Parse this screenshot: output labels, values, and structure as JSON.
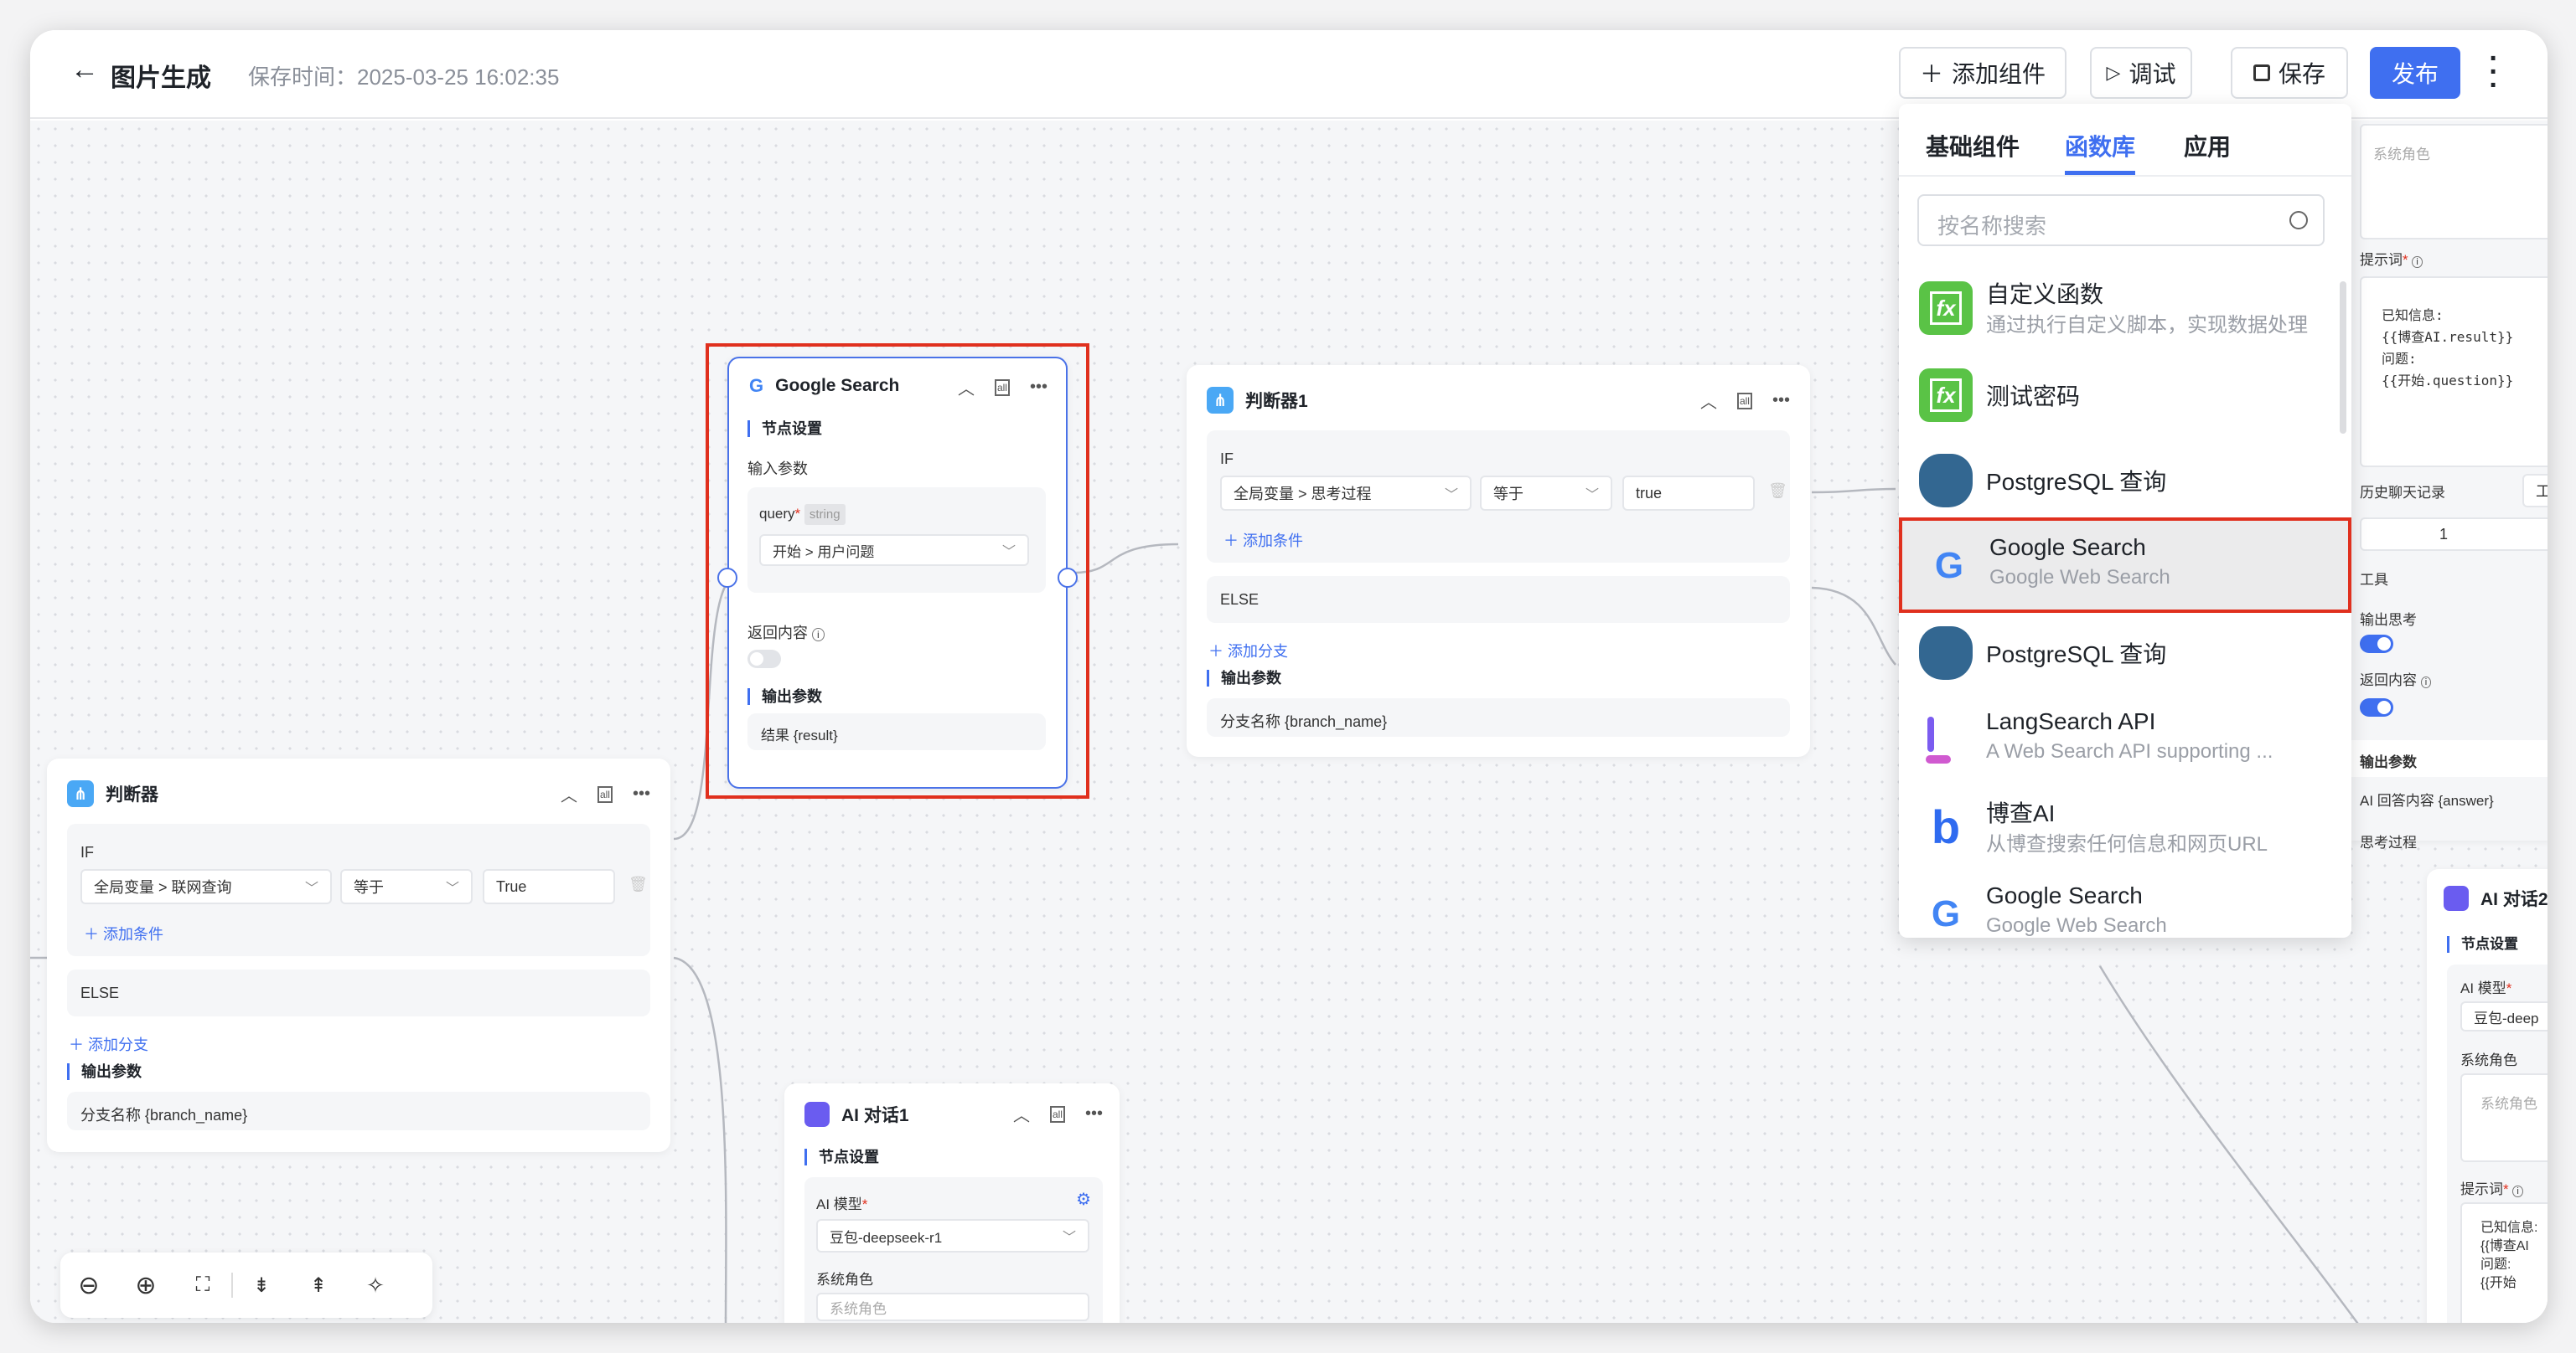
{
  "header": {
    "title": "图片生成",
    "save_time": "保存时间：2025-03-25 16:02:35",
    "buttons": {
      "add_component": "添加组件",
      "debug": "调试",
      "save": "保存",
      "publish": "发布"
    },
    "accent_color": "#3f6ff0"
  },
  "panel": {
    "tabs": [
      {
        "label": "基础组件"
      },
      {
        "label": "函数库",
        "active": true
      },
      {
        "label": "应用"
      }
    ],
    "search_placeholder": "按名称搜索",
    "items": [
      {
        "title": "自定义函数",
        "subtitle": "通过执行自定义脚本，实现数据处理",
        "icon": "fx-icon"
      },
      {
        "title": "测试密码",
        "icon": "fx-icon"
      },
      {
        "title": "PostgreSQL 查询",
        "icon": "postgresql-icon"
      },
      {
        "title": "Google Search",
        "subtitle": "Google Web Search",
        "icon": "google-icon",
        "highlighted": true
      },
      {
        "title": "PostgreSQL 查询",
        "icon": "postgresql-icon"
      },
      {
        "title": "LangSearch API",
        "subtitle": "A Web Search API supporting ...",
        "icon": "langsearch-icon"
      },
      {
        "title": "博查AI",
        "subtitle": "从博查搜索任何信息和网页URL",
        "icon": "bocha-icon"
      },
      {
        "title": "Google Search",
        "subtitle": "Google Web Search",
        "icon": "google-icon"
      }
    ]
  },
  "google_node": {
    "title": "Google Search",
    "section": "节点设置",
    "input_label": "输入参数",
    "param_name": "query",
    "param_type": "string",
    "param_value": "开始 > 用户问题",
    "return_label": "返回内容",
    "return_enabled": false,
    "output_label": "输出参数",
    "output_value": "结果 {result}"
  },
  "judge1": {
    "title": "判断器1",
    "if_label": "IF",
    "variable": "全局变量 > 思考过程",
    "operator": "等于",
    "value": "true",
    "add_condition": "添加条件",
    "else_label": "ELSE",
    "add_branch": "添加分支",
    "output_label": "输出参数",
    "output_value": "分支名称 {branch_name}"
  },
  "judge": {
    "title": "判断器",
    "if_label": "IF",
    "variable": "全局变量 > 联网查询",
    "operator": "等于",
    "value": "True",
    "add_condition": "添加条件",
    "else_label": "ELSE",
    "add_branch": "添加分支",
    "output_label": "输出参数",
    "output_value": "分支名称 {branch_name}"
  },
  "ai1": {
    "title": "AI 对话1",
    "section": "节点设置",
    "model_label": "AI 模型",
    "model_value": "豆包-deepseek-r1",
    "system_label": "系统角色",
    "system_placeholder": "系统角色"
  },
  "right_card": {
    "system_placeholder": "系统角色",
    "prompt_label": "提示词",
    "prompt_lines": [
      "已知信息:",
      "{{博查AI.result}}",
      "问题:",
      "{{开始.question}}"
    ],
    "history_label": "历史聊天记录",
    "history_select": "工",
    "history_value": "1",
    "tools_label": "工具",
    "output_thinking_label": "输出思考",
    "output_thinking_enabled": true,
    "return_label": "返回内容",
    "return_enabled": true,
    "output_label": "输出参数",
    "answer": "AI 回答内容 {answer}",
    "thinking": "思考过程"
  },
  "ai2": {
    "title": "AI 对话2",
    "section": "节点设置",
    "model_label": "AI 模型",
    "model_value": "豆包-deep",
    "system_label": "系统角色",
    "system_placeholder": "系统角色",
    "prompt_label": "提示词",
    "prompt_lines": [
      "已知信息:",
      "{{博查AI",
      "问题:",
      "{{开始"
    ]
  },
  "toolbar": [
    "zoom-out-icon",
    "zoom-in-icon",
    "fit-view-icon",
    "collapse-all-icon",
    "expand-all-icon",
    "beautify-icon"
  ]
}
